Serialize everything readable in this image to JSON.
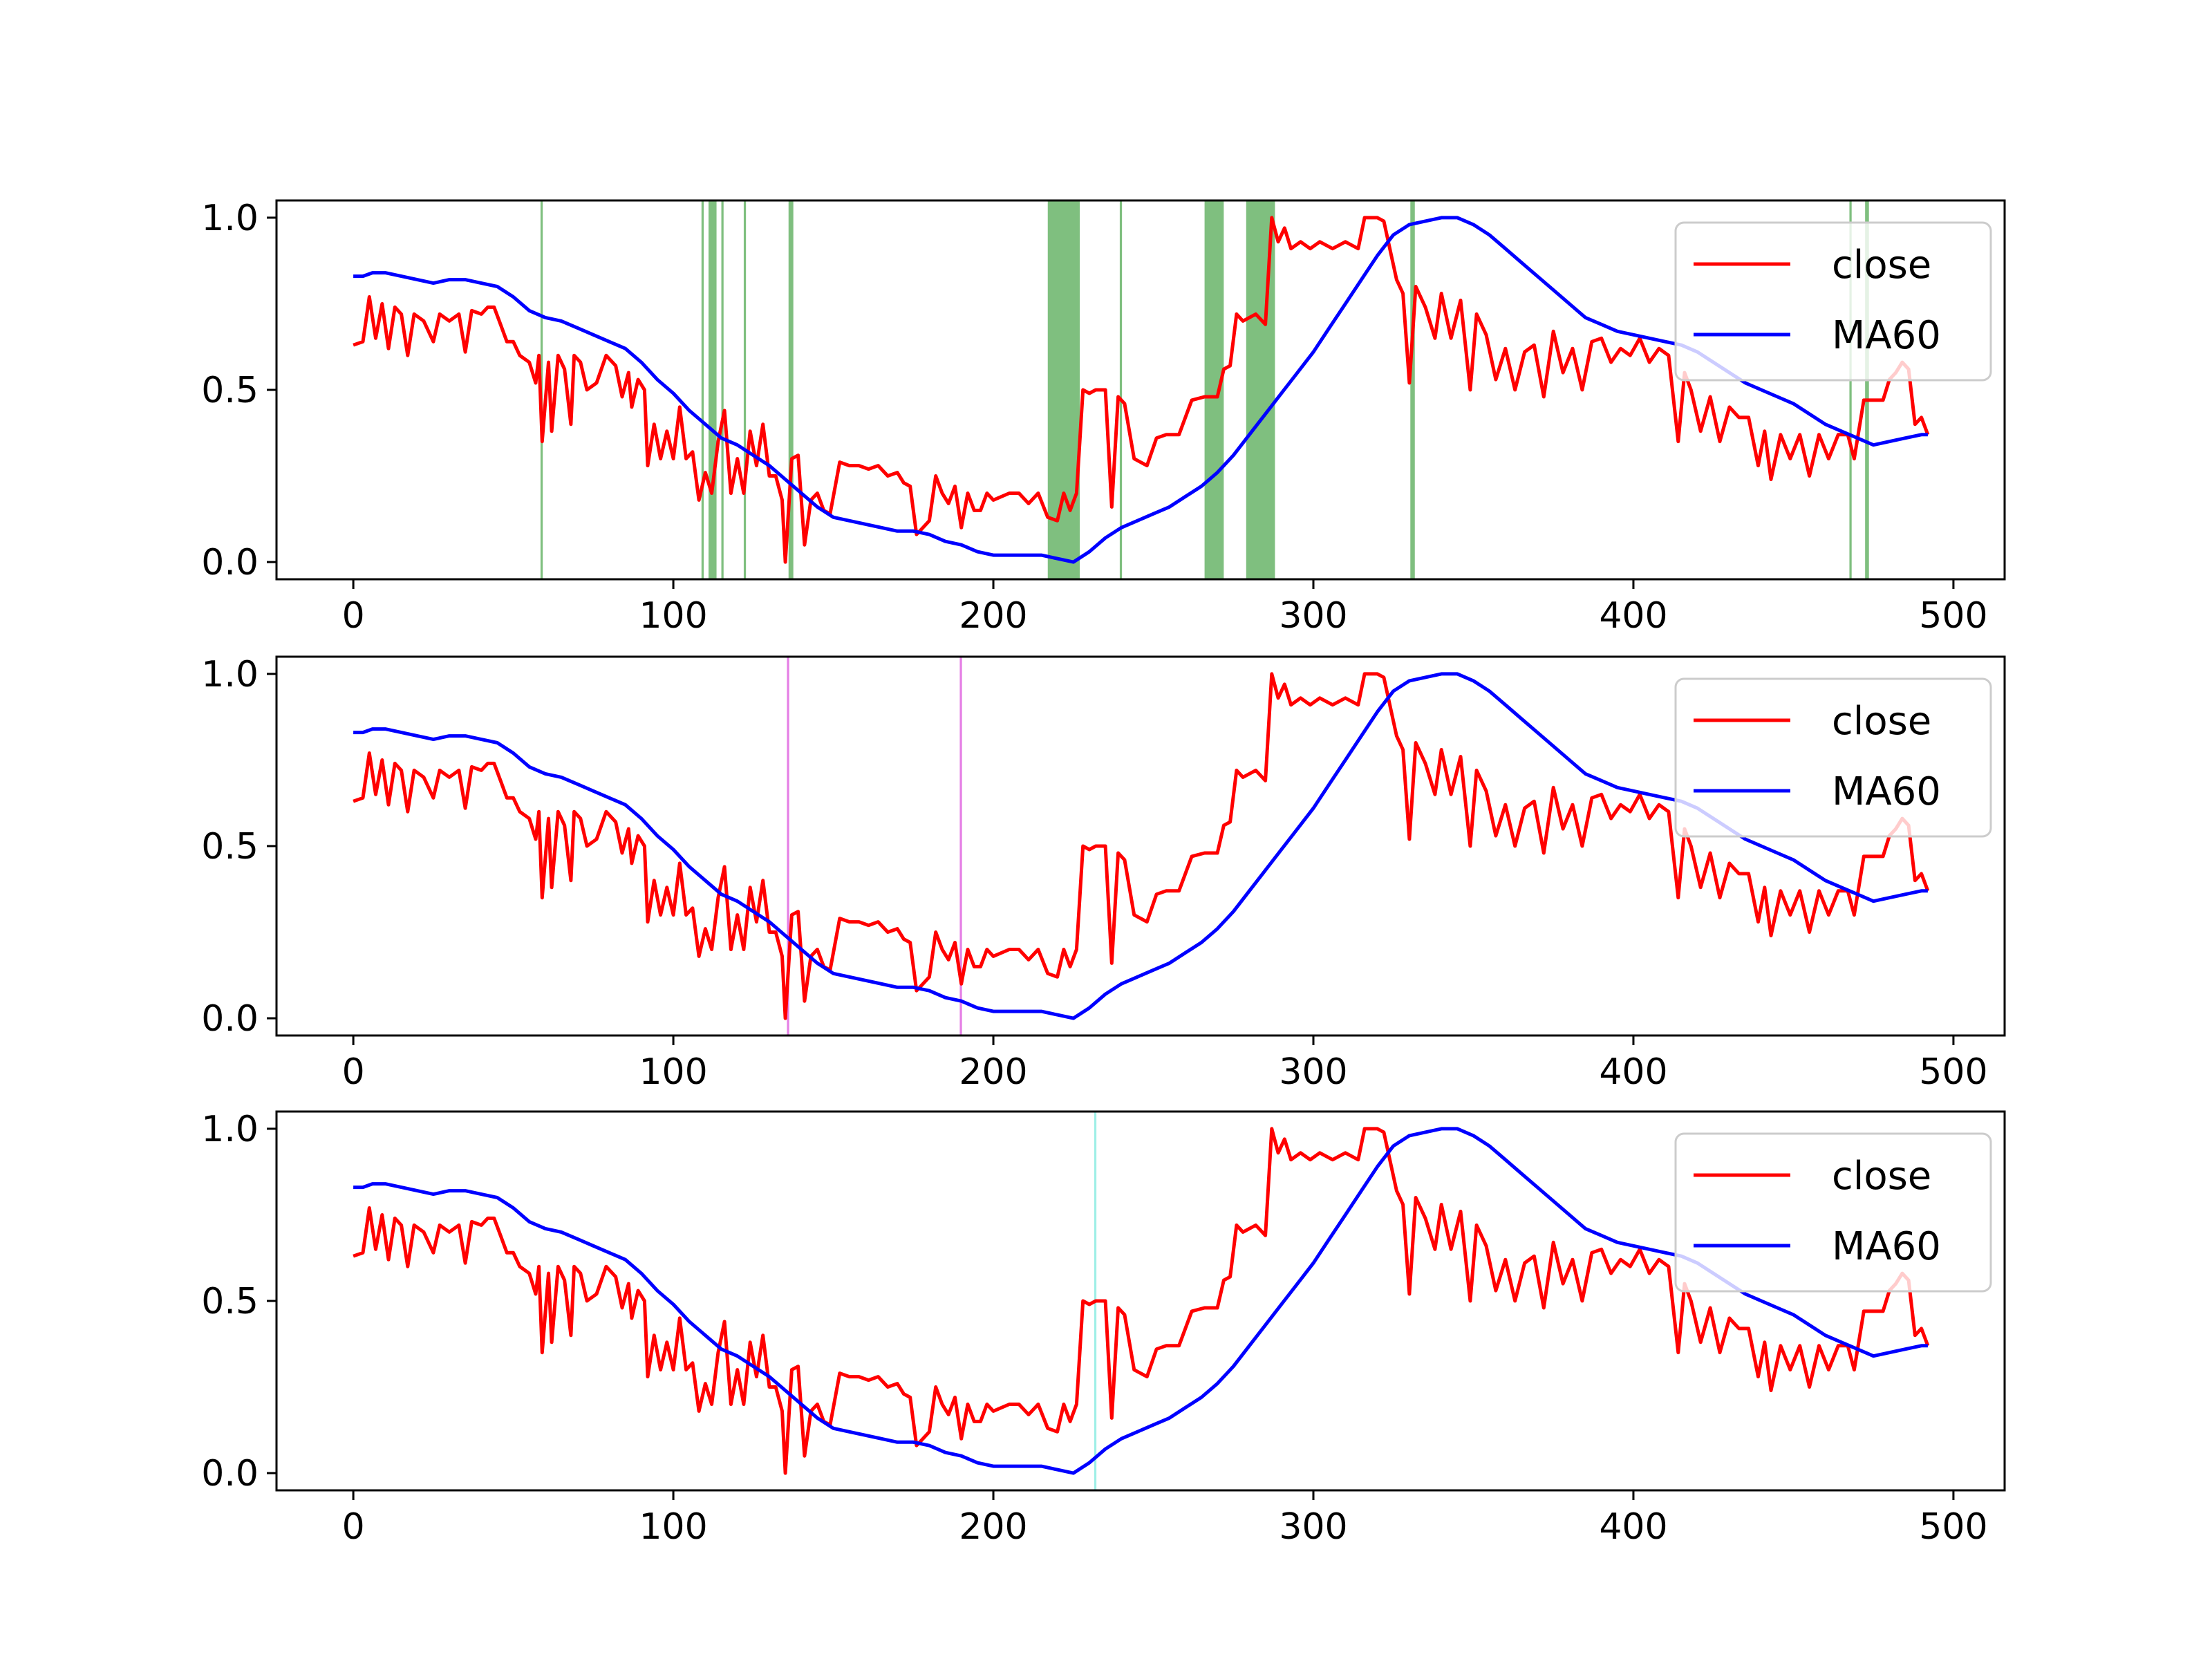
{
  "chart_data": {
    "type": "line",
    "xlim": [
      -24,
      516
    ],
    "ylim": [
      -0.05,
      1.05
    ],
    "xticks": [
      "0",
      "100",
      "200",
      "300",
      "400",
      "500"
    ],
    "yticks": [
      "0.0",
      "0.5",
      "1.0"
    ],
    "legend": {
      "placement": "upper right",
      "entries": [
        "close",
        "MA60"
      ]
    },
    "series": [
      {
        "name": "close",
        "color": "#ff0000",
        "points": [
          [
            0,
            0.63
          ],
          [
            3,
            0.64
          ],
          [
            5,
            0.77
          ],
          [
            7,
            0.65
          ],
          [
            9,
            0.75
          ],
          [
            11,
            0.62
          ],
          [
            13,
            0.74
          ],
          [
            15,
            0.72
          ],
          [
            17,
            0.6
          ],
          [
            19,
            0.72
          ],
          [
            22,
            0.7
          ],
          [
            25,
            0.64
          ],
          [
            27,
            0.72
          ],
          [
            30,
            0.7
          ],
          [
            33,
            0.72
          ],
          [
            35,
            0.61
          ],
          [
            37,
            0.73
          ],
          [
            40,
            0.72
          ],
          [
            42,
            0.74
          ],
          [
            44,
            0.74
          ],
          [
            46,
            0.69
          ],
          [
            48,
            0.64
          ],
          [
            50,
            0.64
          ],
          [
            52,
            0.6
          ],
          [
            55,
            0.58
          ],
          [
            57,
            0.52
          ],
          [
            58,
            0.6
          ],
          [
            59,
            0.35
          ],
          [
            61,
            0.58
          ],
          [
            62,
            0.38
          ],
          [
            64,
            0.6
          ],
          [
            66,
            0.56
          ],
          [
            68,
            0.4
          ],
          [
            69,
            0.6
          ],
          [
            71,
            0.58
          ],
          [
            73,
            0.5
          ],
          [
            76,
            0.52
          ],
          [
            79,
            0.6
          ],
          [
            82,
            0.57
          ],
          [
            84,
            0.48
          ],
          [
            86,
            0.55
          ],
          [
            87,
            0.45
          ],
          [
            89,
            0.53
          ],
          [
            91,
            0.5
          ],
          [
            92,
            0.28
          ],
          [
            94,
            0.4
          ],
          [
            96,
            0.3
          ],
          [
            98,
            0.38
          ],
          [
            100,
            0.3
          ],
          [
            102,
            0.45
          ],
          [
            104,
            0.3
          ],
          [
            106,
            0.32
          ],
          [
            108,
            0.18
          ],
          [
            110,
            0.26
          ],
          [
            112,
            0.2
          ],
          [
            114,
            0.35
          ],
          [
            116,
            0.44
          ],
          [
            118,
            0.2
          ],
          [
            120,
            0.3
          ],
          [
            122,
            0.2
          ],
          [
            124,
            0.38
          ],
          [
            126,
            0.28
          ],
          [
            128,
            0.4
          ],
          [
            130,
            0.25
          ],
          [
            132,
            0.25
          ],
          [
            134,
            0.18
          ],
          [
            135,
            0.0
          ],
          [
            137,
            0.3
          ],
          [
            139,
            0.31
          ],
          [
            141,
            0.05
          ],
          [
            143,
            0.18
          ],
          [
            145,
            0.2
          ],
          [
            147,
            0.15
          ],
          [
            149,
            0.14
          ],
          [
            152,
            0.29
          ],
          [
            155,
            0.28
          ],
          [
            158,
            0.28
          ],
          [
            161,
            0.27
          ],
          [
            164,
            0.28
          ],
          [
            167,
            0.25
          ],
          [
            170,
            0.26
          ],
          [
            172,
            0.23
          ],
          [
            174,
            0.22
          ],
          [
            176,
            0.08
          ],
          [
            178,
            0.1
          ],
          [
            180,
            0.12
          ],
          [
            182,
            0.25
          ],
          [
            184,
            0.2
          ],
          [
            186,
            0.17
          ],
          [
            188,
            0.22
          ],
          [
            190,
            0.1
          ],
          [
            192,
            0.2
          ],
          [
            194,
            0.15
          ],
          [
            196,
            0.15
          ],
          [
            198,
            0.2
          ],
          [
            200,
            0.18
          ],
          [
            205,
            0.2
          ],
          [
            208,
            0.2
          ],
          [
            211,
            0.17
          ],
          [
            214,
            0.2
          ],
          [
            217,
            0.13
          ],
          [
            220,
            0.12
          ],
          [
            222,
            0.2
          ],
          [
            224,
            0.15
          ],
          [
            226,
            0.2
          ],
          [
            228,
            0.5
          ],
          [
            230,
            0.49
          ],
          [
            232,
            0.5
          ],
          [
            235,
            0.5
          ],
          [
            237,
            0.16
          ],
          [
            239,
            0.48
          ],
          [
            241,
            0.46
          ],
          [
            244,
            0.3
          ],
          [
            248,
            0.28
          ],
          [
            251,
            0.36
          ],
          [
            254,
            0.37
          ],
          [
            258,
            0.37
          ],
          [
            262,
            0.47
          ],
          [
            266,
            0.48
          ],
          [
            270,
            0.48
          ],
          [
            272,
            0.56
          ],
          [
            274,
            0.57
          ],
          [
            276,
            0.72
          ],
          [
            278,
            0.7
          ],
          [
            282,
            0.72
          ],
          [
            285,
            0.69
          ],
          [
            287,
            1.0
          ],
          [
            289,
            0.93
          ],
          [
            291,
            0.97
          ],
          [
            293,
            0.91
          ],
          [
            296,
            0.93
          ],
          [
            299,
            0.91
          ],
          [
            302,
            0.93
          ],
          [
            306,
            0.91
          ],
          [
            310,
            0.93
          ],
          [
            314,
            0.91
          ],
          [
            316,
            1.0
          ],
          [
            320,
            1.0
          ],
          [
            322,
            0.99
          ],
          [
            326,
            0.82
          ],
          [
            328,
            0.78
          ],
          [
            330,
            0.52
          ],
          [
            332,
            0.8
          ],
          [
            335,
            0.74
          ],
          [
            338,
            0.65
          ],
          [
            340,
            0.78
          ],
          [
            343,
            0.65
          ],
          [
            346,
            0.76
          ],
          [
            349,
            0.5
          ],
          [
            351,
            0.72
          ],
          [
            354,
            0.66
          ],
          [
            357,
            0.53
          ],
          [
            360,
            0.62
          ],
          [
            363,
            0.5
          ],
          [
            366,
            0.61
          ],
          [
            369,
            0.63
          ],
          [
            372,
            0.48
          ],
          [
            375,
            0.67
          ],
          [
            378,
            0.55
          ],
          [
            381,
            0.62
          ],
          [
            384,
            0.5
          ],
          [
            387,
            0.64
          ],
          [
            390,
            0.65
          ],
          [
            393,
            0.58
          ],
          [
            396,
            0.62
          ],
          [
            399,
            0.6
          ],
          [
            402,
            0.65
          ],
          [
            405,
            0.58
          ],
          [
            408,
            0.62
          ],
          [
            411,
            0.6
          ],
          [
            414,
            0.35
          ],
          [
            416,
            0.55
          ],
          [
            418,
            0.5
          ],
          [
            421,
            0.38
          ],
          [
            424,
            0.48
          ],
          [
            427,
            0.35
          ],
          [
            430,
            0.45
          ],
          [
            433,
            0.42
          ],
          [
            436,
            0.42
          ],
          [
            439,
            0.28
          ],
          [
            441,
            0.38
          ],
          [
            443,
            0.24
          ],
          [
            446,
            0.37
          ],
          [
            449,
            0.3
          ],
          [
            452,
            0.37
          ],
          [
            455,
            0.25
          ],
          [
            458,
            0.37
          ],
          [
            461,
            0.3
          ],
          [
            464,
            0.37
          ],
          [
            467,
            0.37
          ],
          [
            469,
            0.3
          ],
          [
            472,
            0.47
          ],
          [
            475,
            0.47
          ],
          [
            478,
            0.47
          ],
          [
            480,
            0.53
          ],
          [
            482,
            0.55
          ],
          [
            484,
            0.58
          ],
          [
            486,
            0.56
          ],
          [
            488,
            0.4
          ],
          [
            490,
            0.42
          ],
          [
            492,
            0.37
          ]
        ]
      },
      {
        "name": "MA60",
        "color": "#0000ff",
        "points": [
          [
            0,
            0.83
          ],
          [
            3,
            0.83
          ],
          [
            6,
            0.84
          ],
          [
            10,
            0.84
          ],
          [
            15,
            0.83
          ],
          [
            20,
            0.82
          ],
          [
            25,
            0.81
          ],
          [
            30,
            0.82
          ],
          [
            35,
            0.82
          ],
          [
            40,
            0.81
          ],
          [
            45,
            0.8
          ],
          [
            50,
            0.77
          ],
          [
            55,
            0.73
          ],
          [
            60,
            0.71
          ],
          [
            65,
            0.7
          ],
          [
            70,
            0.68
          ],
          [
            75,
            0.66
          ],
          [
            80,
            0.64
          ],
          [
            85,
            0.62
          ],
          [
            90,
            0.58
          ],
          [
            95,
            0.53
          ],
          [
            100,
            0.49
          ],
          [
            105,
            0.44
          ],
          [
            110,
            0.4
          ],
          [
            115,
            0.36
          ],
          [
            120,
            0.34
          ],
          [
            125,
            0.31
          ],
          [
            130,
            0.28
          ],
          [
            135,
            0.24
          ],
          [
            140,
            0.2
          ],
          [
            145,
            0.16
          ],
          [
            150,
            0.13
          ],
          [
            155,
            0.12
          ],
          [
            160,
            0.11
          ],
          [
            165,
            0.1
          ],
          [
            170,
            0.09
          ],
          [
            175,
            0.09
          ],
          [
            180,
            0.08
          ],
          [
            185,
            0.06
          ],
          [
            190,
            0.05
          ],
          [
            195,
            0.03
          ],
          [
            200,
            0.02
          ],
          [
            205,
            0.02
          ],
          [
            210,
            0.02
          ],
          [
            215,
            0.02
          ],
          [
            220,
            0.01
          ],
          [
            225,
            0.0
          ],
          [
            230,
            0.03
          ],
          [
            235,
            0.07
          ],
          [
            240,
            0.1
          ],
          [
            245,
            0.12
          ],
          [
            250,
            0.14
          ],
          [
            255,
            0.16
          ],
          [
            260,
            0.19
          ],
          [
            265,
            0.22
          ],
          [
            270,
            0.26
          ],
          [
            275,
            0.31
          ],
          [
            280,
            0.37
          ],
          [
            285,
            0.43
          ],
          [
            290,
            0.49
          ],
          [
            295,
            0.55
          ],
          [
            300,
            0.61
          ],
          [
            305,
            0.68
          ],
          [
            310,
            0.75
          ],
          [
            315,
            0.82
          ],
          [
            320,
            0.89
          ],
          [
            325,
            0.95
          ],
          [
            330,
            0.98
          ],
          [
            335,
            0.99
          ],
          [
            340,
            1.0
          ],
          [
            345,
            1.0
          ],
          [
            350,
            0.98
          ],
          [
            355,
            0.95
          ],
          [
            360,
            0.91
          ],
          [
            365,
            0.87
          ],
          [
            370,
            0.83
          ],
          [
            375,
            0.79
          ],
          [
            380,
            0.75
          ],
          [
            385,
            0.71
          ],
          [
            390,
            0.69
          ],
          [
            395,
            0.67
          ],
          [
            400,
            0.66
          ],
          [
            405,
            0.65
          ],
          [
            410,
            0.64
          ],
          [
            415,
            0.63
          ],
          [
            420,
            0.61
          ],
          [
            425,
            0.58
          ],
          [
            430,
            0.55
          ],
          [
            435,
            0.52
          ],
          [
            440,
            0.5
          ],
          [
            445,
            0.48
          ],
          [
            450,
            0.46
          ],
          [
            455,
            0.43
          ],
          [
            460,
            0.4
          ],
          [
            465,
            0.38
          ],
          [
            470,
            0.36
          ],
          [
            475,
            0.34
          ],
          [
            480,
            0.35
          ],
          [
            485,
            0.36
          ],
          [
            490,
            0.37
          ],
          [
            492,
            0.37
          ]
        ]
      }
    ],
    "panels": [
      {
        "band_color": "#008000",
        "bands": [
          [
            58.5,
            59.2
          ],
          [
            108.8,
            109.5
          ],
          [
            111,
            113.5
          ],
          [
            115,
            115.7
          ],
          [
            122,
            122.7
          ],
          [
            136,
            137.5
          ],
          [
            217,
            227
          ],
          [
            239.5,
            240.2
          ],
          [
            266,
            272
          ],
          [
            279,
            288
          ],
          [
            330.3,
            331.7
          ],
          [
            467.5,
            468.2
          ],
          [
            472.4,
            473.6
          ]
        ]
      },
      {
        "band_color": "#cc00cc",
        "bands": [
          [
            135.5,
            136.2
          ],
          [
            189.5,
            190.2
          ]
        ]
      },
      {
        "band_color": "#40e0d0",
        "bands": [
          [
            231.5,
            232.2
          ]
        ]
      }
    ]
  }
}
